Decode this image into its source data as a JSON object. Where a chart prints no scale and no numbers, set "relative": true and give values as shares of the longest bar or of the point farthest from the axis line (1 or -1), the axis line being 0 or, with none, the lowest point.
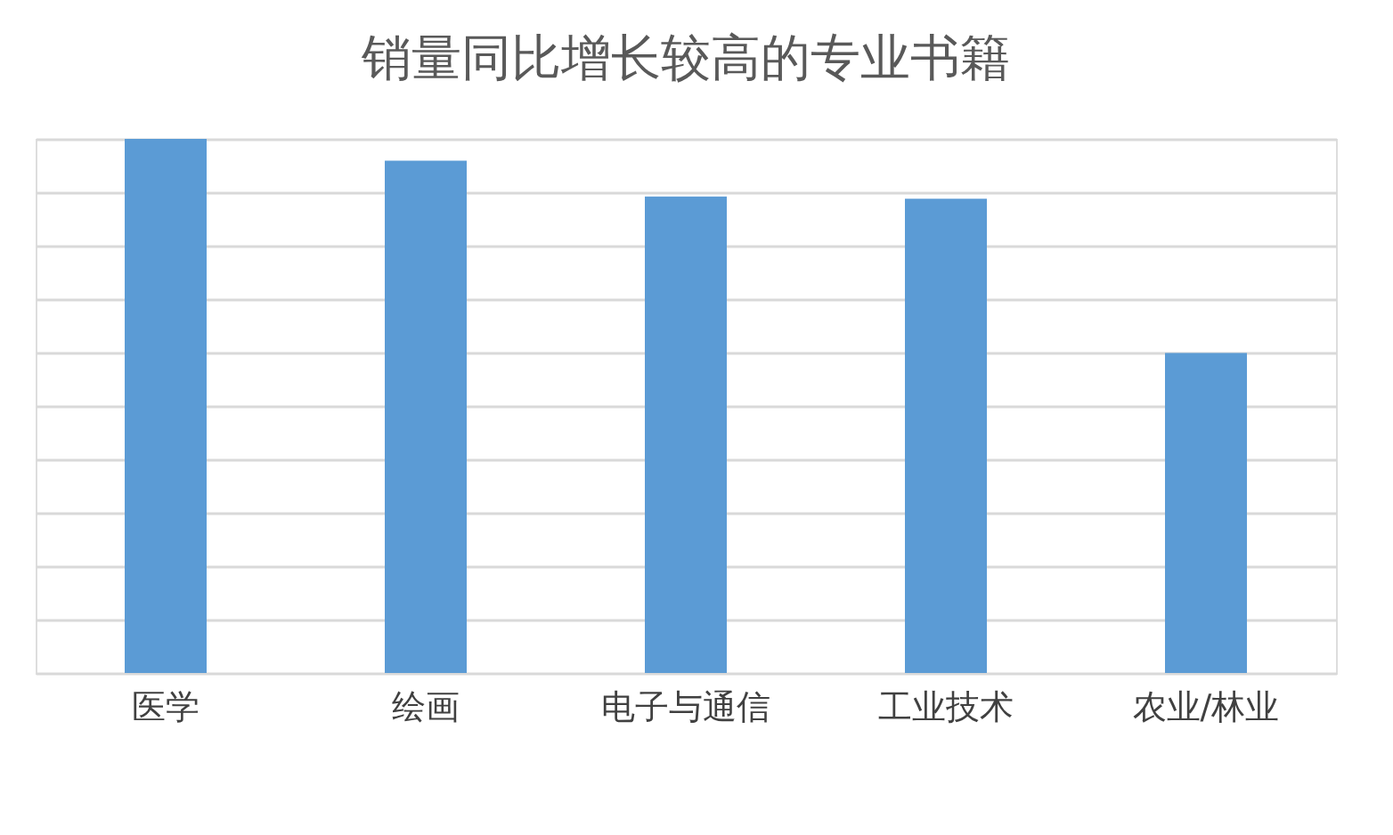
{
  "chart_data": {
    "type": "bar",
    "title": "销量同比增长较高的专业书籍",
    "categories": [
      "医学",
      "绘画",
      "电子与通信",
      "工业技术",
      "农业/林业"
    ],
    "values": [
      1,
      0.959,
      0.892,
      0.888,
      0.599
    ],
    "color": "#5b9bd5",
    "relative": true,
    "grid": "y"
  }
}
